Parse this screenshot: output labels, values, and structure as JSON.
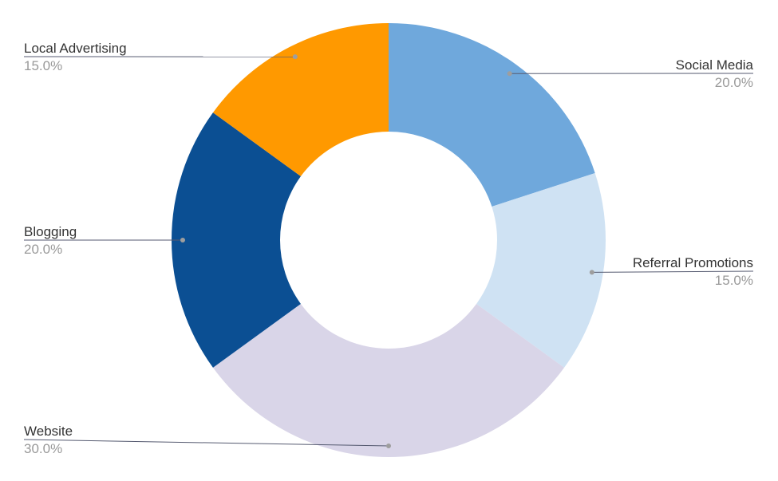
{
  "chart_data": {
    "type": "pie",
    "donut": true,
    "title": "",
    "legend": "none",
    "slices": [
      {
        "label": "Social Media",
        "value": 20.0,
        "display": "20.0%",
        "color": "#6fa8dc"
      },
      {
        "label": "Referral Promotions",
        "value": 15.0,
        "display": "15.0%",
        "color": "#cfe2f3"
      },
      {
        "label": "Website",
        "value": 30.0,
        "display": "30.0%",
        "color": "#d9d5e8"
      },
      {
        "label": "Blogging",
        "value": 20.0,
        "display": "20.0%",
        "color": "#0b4f93"
      },
      {
        "label": "Local Advertising",
        "value": 15.0,
        "display": "15.0%",
        "color": "#ff9900"
      }
    ]
  }
}
